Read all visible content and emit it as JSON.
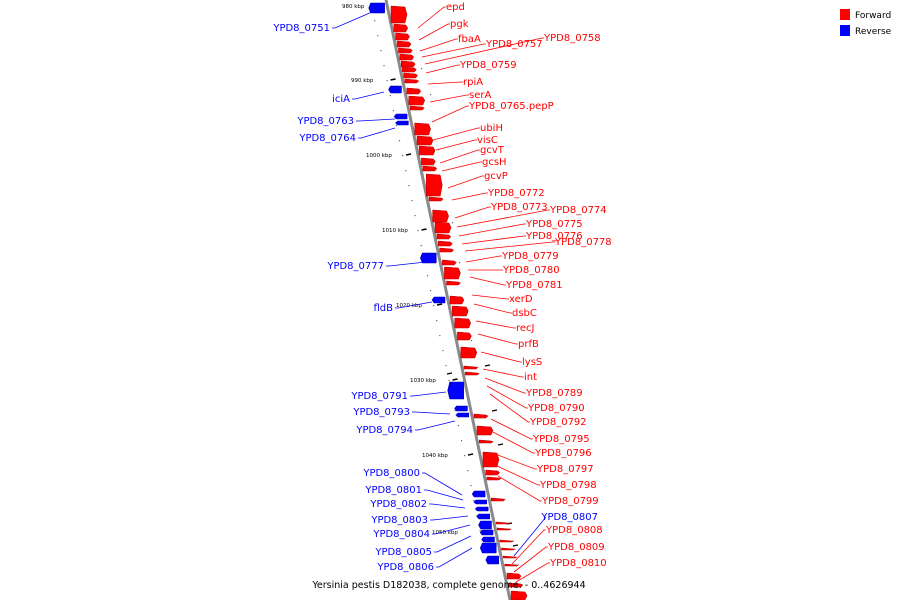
{
  "legend": {
    "forward_label": "Forward",
    "reverse_label": "Reverse",
    "forward_color": "#ff0000",
    "reverse_color": "#0000ff"
  },
  "colors": {
    "axis": "#8a8a8a",
    "leader_forward": "#ff0000",
    "leader_reverse": "#0000ff",
    "tick": "#000000"
  },
  "caption": "Yersinia pestis D182038, complete genome. - 0..4626944",
  "scale_ticks": [
    "980 kbp",
    "990 kbp",
    "1000 kbp",
    "1010 kbp",
    "1020 kbp",
    "1030 kbp",
    "1040 kbp",
    "1050 kbp"
  ],
  "forward_genes": [
    "epd",
    "pgk",
    "fbaA",
    "YPD8_0757",
    "YPD8_0758",
    "YPD8_0759",
    "rpiA",
    "serA",
    "YPD8_0765.pepP",
    "ubiH",
    "visC",
    "gcvT",
    "gcsH",
    "gcvP",
    "YPD8_0772",
    "YPD8_0773",
    "YPD8_0774",
    "YPD8_0775",
    "YPD8_0776",
    "YPD8_0778",
    "YPD8_0779",
    "YPD8_0780",
    "YPD8_0781",
    "xerD",
    "dsbC",
    "recJ",
    "prfB",
    "lysS",
    "int",
    "YPD8_0789",
    "YPD8_0790",
    "YPD8_0792",
    "YPD8_0795",
    "YPD8_0796",
    "YPD8_0797",
    "YPD8_0798",
    "YPD8_0799",
    "YPD8_0808",
    "YPD8_0809",
    "YPD8_0810"
  ],
  "reverse_genes": [
    "YPD8_0751",
    "iciA",
    "YPD8_0763",
    "YPD8_0764",
    "YPD8_0777",
    "fldB",
    "YPD8_0791",
    "YPD8_0793",
    "YPD8_0794",
    "YPD8_0800",
    "YPD8_0801",
    "YPD8_0802",
    "YPD8_0803",
    "YPD8_0804",
    "YPD8_0805",
    "YPD8_0806",
    "YPD8_0807"
  ]
}
